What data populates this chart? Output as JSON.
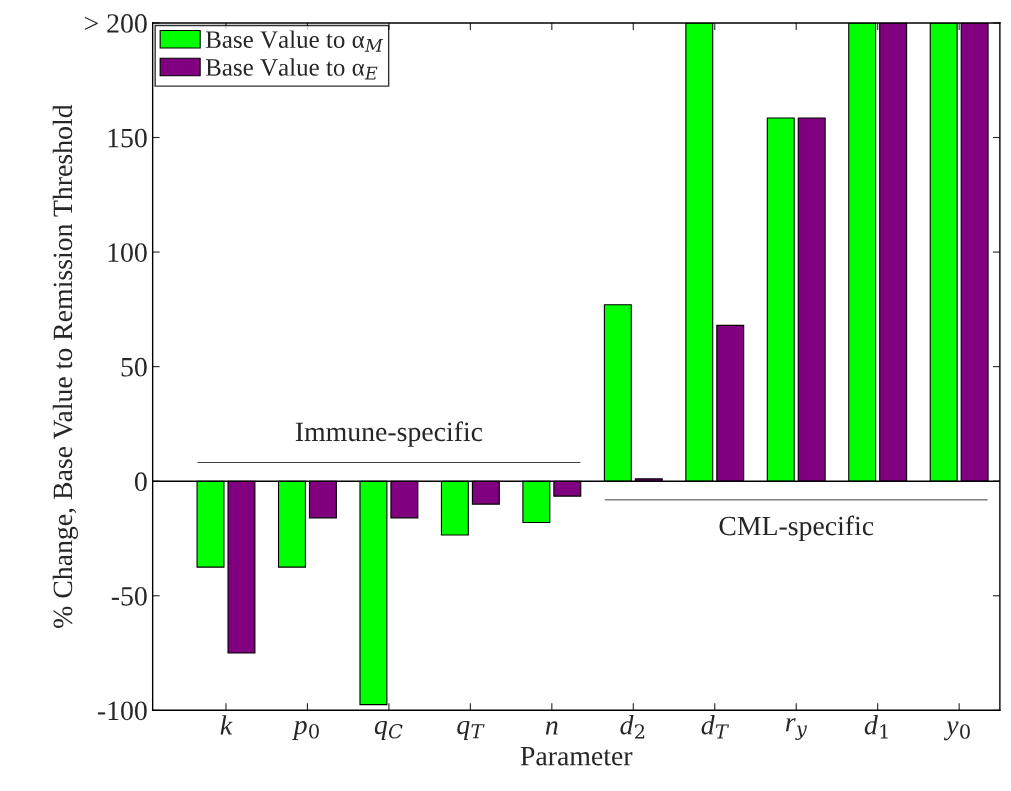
{
  "chart_data": {
    "type": "bar",
    "xlabel": "Parameter",
    "ylabel": "% Change, Base Value to Remission Threshold",
    "categories": [
      "k",
      "p$_{0}$",
      "q$_{C}$",
      "q$_{T}$",
      "n",
      "d$_{2}$",
      "d$_{T}$",
      "r$_{y}$",
      "d$_{1}$",
      "y$_{0}$"
    ],
    "series": [
      {
        "name": "Base Value to α$_{M}$",
        "color": "#00ff00",
        "values": [
          -37.5,
          -37.5,
          -97.5,
          -23.5,
          -18,
          77,
          200,
          158.5,
          200,
          200
        ]
      },
      {
        "name": "Base Value to α$_{E}$",
        "color": "#800080",
        "values": [
          -75,
          -16,
          -16,
          -10,
          -6.5,
          1,
          68,
          158.5,
          200,
          200
        ]
      }
    ],
    "ylim": [
      -100,
      200
    ],
    "yticks": [
      -100,
      -50,
      0,
      50,
      100,
      150,
      {
        "value": 200,
        "label": "> 200"
      }
    ],
    "ref_lines": [
      {
        "axis": "y",
        "value": 0
      }
    ],
    "annotations": [
      "Immune-specific",
      "CML-specific"
    ],
    "grid": false,
    "legend": "top left"
  }
}
